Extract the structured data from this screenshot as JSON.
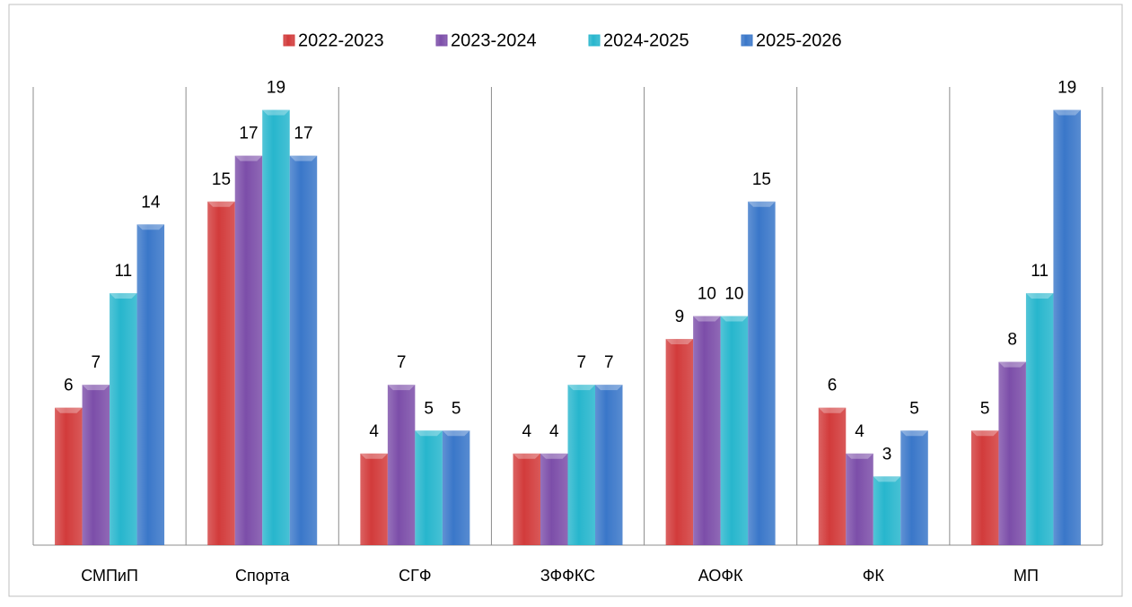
{
  "chart_data": {
    "type": "bar",
    "categories": [
      "СМПиП",
      "Спорта",
      "СГФ",
      "ЗФФКС",
      "АОФК",
      "ФК",
      "МП"
    ],
    "series": [
      {
        "name": "2022-2023",
        "color": "#d23b3b",
        "values": [
          6,
          15,
          4,
          4,
          9,
          6,
          5
        ]
      },
      {
        "name": "2023-2024",
        "color": "#7c4ea9",
        "values": [
          7,
          17,
          7,
          4,
          10,
          4,
          8
        ]
      },
      {
        "name": "2024-2025",
        "color": "#27b6cd",
        "values": [
          11,
          19,
          5,
          7,
          10,
          3,
          11
        ]
      },
      {
        "name": "2025-2026",
        "color": "#3a77c9",
        "values": [
          14,
          17,
          5,
          7,
          15,
          5,
          19
        ]
      }
    ],
    "ylim": [
      0,
      20
    ],
    "legend": "top"
  }
}
